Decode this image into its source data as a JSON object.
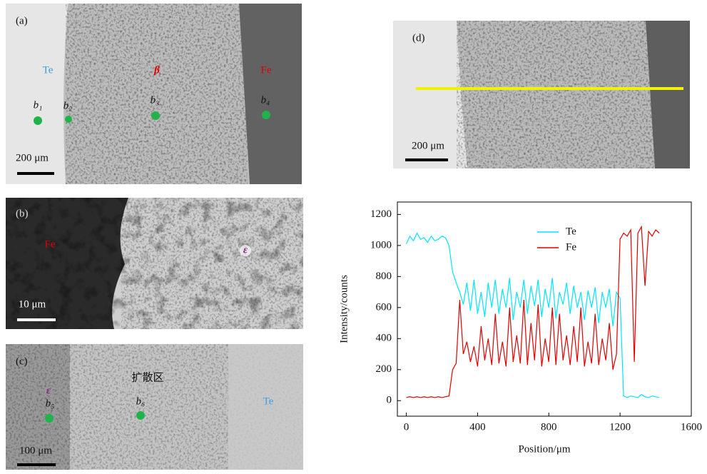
{
  "panel_a": {
    "label": "(a)",
    "phases": [
      "Te",
      "β",
      "Fe"
    ],
    "points": [
      "b₁",
      "b₂",
      "b₃",
      "b₄"
    ],
    "scale_bar": "200 μm"
  },
  "panel_b": {
    "label": "(b)",
    "phases": [
      "Fe",
      "ε"
    ],
    "scale_bar": "10 μm"
  },
  "panel_c": {
    "label": "(c)",
    "region": "扩散区",
    "phases": [
      "ε",
      "Te"
    ],
    "points": [
      "b₅",
      "b₆"
    ],
    "scale_bar": "100 μm"
  },
  "panel_d": {
    "label": "(d)",
    "scale_bar": "200 μm"
  },
  "chart_data": {
    "type": "line",
    "xlabel": "Position/μm",
    "ylabel": "Intensity/counts",
    "x": [
      0,
      20,
      40,
      60,
      80,
      100,
      120,
      140,
      160,
      180,
      200,
      220,
      240,
      260,
      280,
      300,
      320,
      340,
      360,
      380,
      400,
      420,
      440,
      460,
      480,
      500,
      520,
      540,
      560,
      580,
      600,
      620,
      640,
      660,
      680,
      700,
      720,
      740,
      760,
      780,
      800,
      820,
      840,
      860,
      880,
      900,
      920,
      940,
      960,
      980,
      1000,
      1020,
      1040,
      1060,
      1080,
      1100,
      1120,
      1140,
      1160,
      1180,
      1200,
      1220,
      1240,
      1260,
      1280,
      1300,
      1320,
      1340,
      1360,
      1380,
      1400,
      1420
    ],
    "series": [
      {
        "name": "Te",
        "color": "#00e5ff",
        "values": [
          1010,
          1060,
          1030,
          1080,
          1040,
          1050,
          1020,
          1060,
          1030,
          1040,
          1060,
          1050,
          1000,
          830,
          760,
          700,
          620,
          760,
          580,
          780,
          560,
          700,
          540,
          760,
          600,
          780,
          560,
          720,
          600,
          790,
          520,
          700,
          600,
          780,
          560,
          740,
          610,
          780,
          540,
          720,
          600,
          790,
          530,
          700,
          620,
          760,
          560,
          740,
          600,
          700,
          520,
          710,
          600,
          730,
          500,
          700,
          600,
          720,
          480,
          700,
          660,
          30,
          20,
          30,
          25,
          20,
          40,
          25,
          20,
          30,
          25,
          20
        ]
      },
      {
        "name": "Fe",
        "color": "#e00000",
        "values": [
          20,
          25,
          20,
          25,
          20,
          25,
          20,
          25,
          20,
          25,
          20,
          25,
          30,
          200,
          240,
          650,
          300,
          380,
          250,
          350,
          220,
          480,
          260,
          400,
          230,
          560,
          240,
          380,
          220,
          600,
          250,
          420,
          240,
          650,
          230,
          500,
          260,
          620,
          220,
          400,
          250,
          600,
          230,
          560,
          260,
          420,
          230,
          480,
          250,
          600,
          220,
          380,
          240,
          560,
          230,
          400,
          260,
          500,
          200,
          300,
          1040,
          1080,
          1060,
          1100,
          250,
          1080,
          1120,
          740,
          1090,
          1060,
          1100,
          1080
        ]
      }
    ],
    "xlim": [
      -50,
      1600
    ],
    "ylim": [
      -100,
      1280
    ],
    "xticks": [
      0,
      400,
      800,
      1200,
      1600
    ],
    "yticks": [
      0,
      200,
      400,
      600,
      800,
      1000,
      1200
    ],
    "legend": "upper center"
  }
}
